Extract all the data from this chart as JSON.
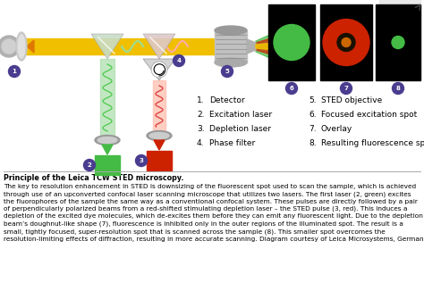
{
  "bg_color": "#ffffff",
  "numbered_items_col1": [
    [
      "1.",
      "Detector"
    ],
    [
      "2.",
      "Excitation laser"
    ],
    [
      "3.",
      "Depletion laser"
    ],
    [
      "4.",
      "Phase filter"
    ]
  ],
  "numbered_items_col2": [
    [
      "5.",
      "STED objective"
    ],
    [
      "6.",
      "Focused excitation spot"
    ],
    [
      "7.",
      "Overlay"
    ],
    [
      "8.",
      "Resulting fluorescence spot"
    ]
  ],
  "bold_title": "Principle of the Leica TCW STED microscopy.",
  "body_text": "The key to resolution enhancement in STED is downsizing of the fluorescent spot used to scan the sample, which is achieved\nthrough use of an upconverted confocal laser scanning microscope that utilizes two lasers. The first laser (2, green) excites\nthe fluorophores of the sample the same way as a conventional confocal system. These pulses are directly followed by a pair\nof perpendicularly polarized beams from a red-shifted stimulating depletion laser – the STED pulse (3, red). This induces a\ndepletion of the excited dye molecules, which de-excites them before they can emit any fluorescent light. Due to the depletion\nbeam’s doughnut-like shape (7), fluorescence is inhibited only in the outer regions of the illuminated spot. The result is a\nsmall, tightly focused, super-resolution spot that is scanned across the sample (8). This smaller spot overcomes the\nresolution-limiting effects of diffraction, resulting in more accurate scanning. Diagram courtesy of Leica Microsystems, Germany.",
  "number_circle_color": "#4a3d8f",
  "number_text_color": "#ffffff",
  "green_color": "#44bb44",
  "red_color": "#cc2200",
  "yellow_color": "#f0c000",
  "orange_color": "#e07800"
}
